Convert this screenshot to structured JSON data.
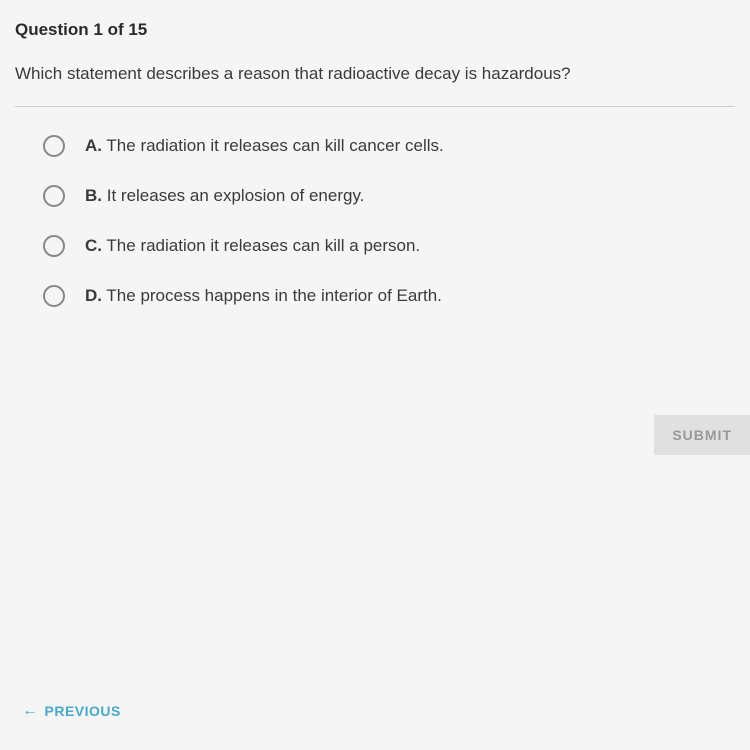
{
  "header": {
    "question_label": "Question 1 of 15"
  },
  "question": {
    "text": "Which statement describes a reason that radioactive decay is hazardous?"
  },
  "options": [
    {
      "letter": "A.",
      "text": "The radiation it releases can kill cancer cells."
    },
    {
      "letter": "B.",
      "text": "It releases an explosion of energy."
    },
    {
      "letter": "C.",
      "text": "The radiation it releases can kill a person."
    },
    {
      "letter": "D.",
      "text": "The process happens in the interior of Earth."
    }
  ],
  "buttons": {
    "submit": "SUBMIT",
    "previous": "PREVIOUS"
  },
  "colors": {
    "background": "#f5f5f5",
    "text_primary": "#2a2a2a",
    "text_body": "#3a3a3a",
    "radio_border": "#888",
    "divider": "#ccc",
    "submit_bg": "#e0e0e0",
    "submit_text": "#999",
    "previous_text": "#4aa8c9"
  }
}
